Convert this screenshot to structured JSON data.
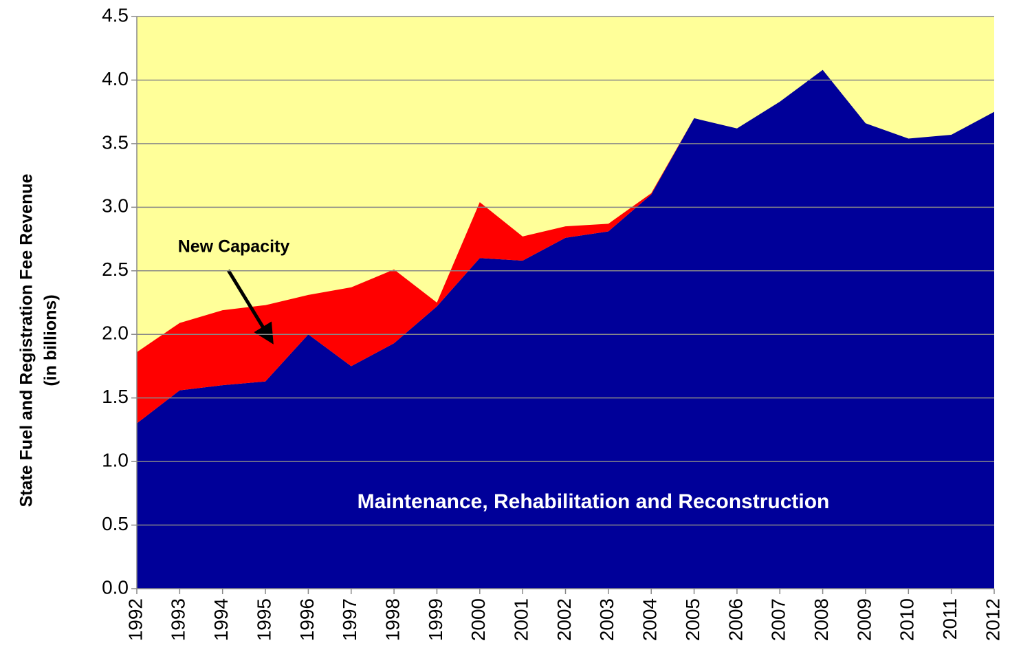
{
  "chart_data": {
    "type": "stacked_area",
    "y_label": [
      "State Fuel and Registration Fee Revenue",
      "(in billions)"
    ],
    "categories": [
      "1992",
      "1993",
      "1994",
      "1995",
      "1996",
      "1997",
      "1998",
      "1999",
      "2000",
      "2001",
      "2002",
      "2003",
      "2004",
      "2005",
      "2006",
      "2007",
      "2008",
      "2009",
      "2010",
      "2011",
      "2012"
    ],
    "series": [
      {
        "name": "Maintenance, Rehabilitation and Reconstruction",
        "color": "#000099",
        "values": [
          1.3,
          1.56,
          1.6,
          1.63,
          2.0,
          1.75,
          1.93,
          2.22,
          2.6,
          2.58,
          2.76,
          2.81,
          3.1,
          3.7,
          3.62,
          3.83,
          4.08,
          3.66,
          3.54,
          3.57,
          3.75
        ]
      },
      {
        "name": "New Capacity",
        "color": "#ff0000",
        "values": [
          0.56,
          0.53,
          0.59,
          0.6,
          0.31,
          0.62,
          0.58,
          0.03,
          0.44,
          0.19,
          0.09,
          0.06,
          0.01,
          0,
          0,
          0,
          0,
          0,
          0,
          0,
          0
        ]
      }
    ],
    "plot_background": "#ffff99",
    "ylim": [
      0,
      4.5
    ],
    "yticks": [
      {
        "value": 0,
        "label": "0.0"
      },
      0.5,
      {
        "value": 1,
        "label": "1.0"
      },
      1.5,
      {
        "value": 2,
        "label": "2.0"
      },
      2.5,
      {
        "value": 3,
        "label": "3.0"
      },
      3.5,
      {
        "value": 4,
        "label": "4.0"
      },
      4.5
    ],
    "grid": true
  }
}
